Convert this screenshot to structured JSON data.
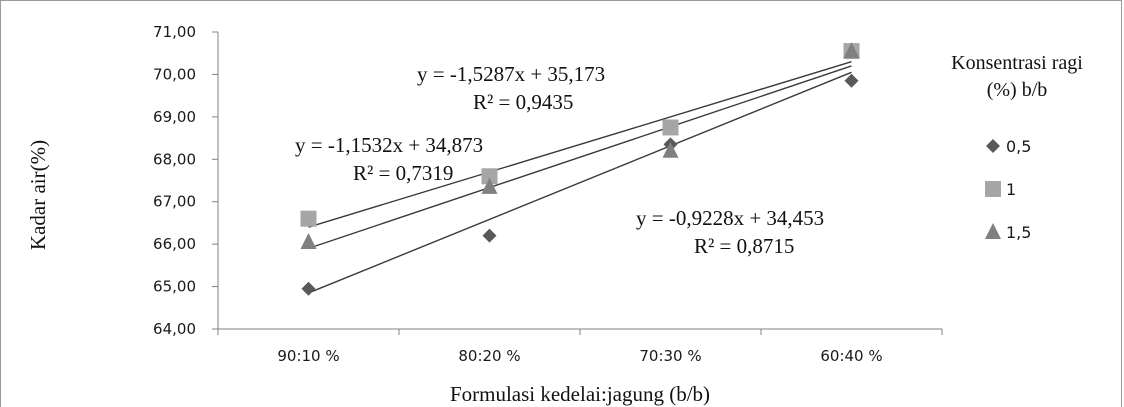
{
  "chart_data": {
    "type": "scatter",
    "xlabel": "Formulasi kedelai:jagung (b/b)",
    "ylabel": "Kadar air(%)",
    "categories": [
      "90:10 %",
      "80:20 %",
      "70:30 %",
      "60:40 %"
    ],
    "ylim": [
      64,
      71
    ],
    "yticks": [
      "64,00",
      "65,00",
      "66,00",
      "67,00",
      "68,00",
      "69,00",
      "70,00",
      "71,00"
    ],
    "legend": {
      "title_line1": "Konsentrasi ragi",
      "title_line2": "(%) b/b",
      "position": "right"
    },
    "grid": false,
    "series": [
      {
        "name": "0,5",
        "marker": "diamond",
        "color": "#595959",
        "values": [
          64.95,
          66.2,
          68.35,
          69.85
        ]
      },
      {
        "name": "1",
        "marker": "square",
        "color": "#a6a6a6",
        "values": [
          66.6,
          67.6,
          68.75,
          70.55
        ]
      },
      {
        "name": "1,5",
        "marker": "triangle",
        "color": "#808080",
        "values": [
          66.05,
          67.35,
          68.2,
          70.55
        ]
      }
    ],
    "trendlines": [
      {
        "equation": "y = -1,5287x + 35,173",
        "r2": "R² = 0,9435",
        "start": 66.4,
        "end": 70.3
      },
      {
        "equation": "y = -1,1532x + 34,873",
        "r2": "R² = 0,7319",
        "start": 65.9,
        "end": 70.2
      },
      {
        "equation": "y = -0,9228x + 34,453",
        "r2": "R² = 0,8715",
        "start": 64.85,
        "end": 70.05
      }
    ]
  }
}
